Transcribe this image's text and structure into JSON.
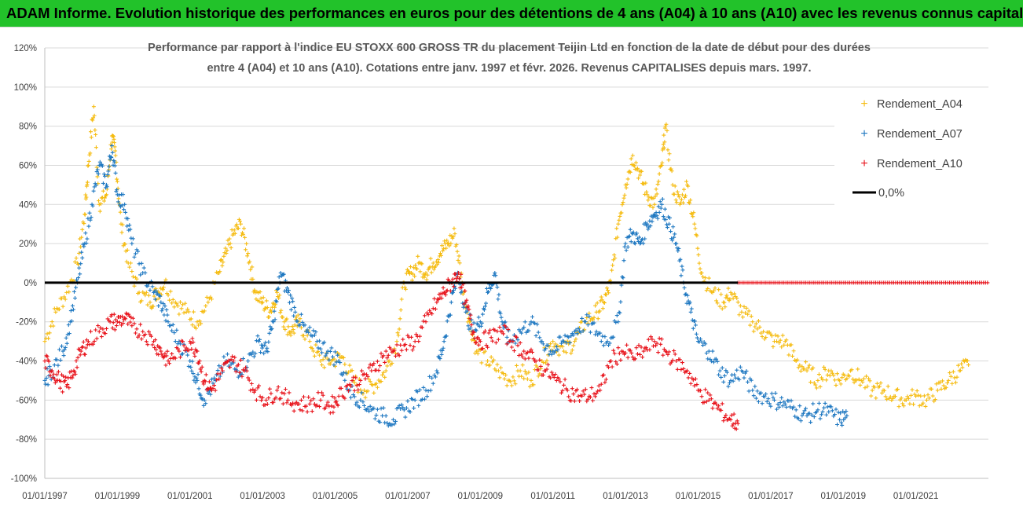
{
  "header": {
    "banner": "ADAM Informe. Evolution historique des performances en euros pour des détentions de 4 ans (A04) à 10 ans (A10) avec les revenus connus capitalisés"
  },
  "colors": {
    "banner": "#22c22a",
    "A04": "#f5bc12",
    "A07": "#1f78c1",
    "A10": "#e8141c",
    "zero_line": "#000000",
    "grid": "#d9d9d9"
  },
  "chart_data": {
    "type": "scatter",
    "title_lines": [
      "Performance par rapport à l'indice EU STOXX 600 GROSS TR  du placement Teijin Ltd en fonction de la date de début pour des durées",
      "entre 4 (A04) et 10 ans (A10). Cotations entre janv. 1997 et févr. 2026. Revenus CAPITALISES depuis mars. 1997."
    ],
    "xlabel": "",
    "ylabel": "",
    "x_range": [
      1997.0,
      2023.0
    ],
    "ylim": [
      -100,
      120
    ],
    "y_ticks": [
      120,
      100,
      80,
      60,
      40,
      20,
      0,
      -20,
      -40,
      -60,
      -80,
      -100
    ],
    "y_tick_labels": [
      "120%",
      "100%",
      "80%",
      "60%",
      "40%",
      "20%",
      "0%",
      "-20%",
      "-40%",
      "-60%",
      "-80%",
      "-100%"
    ],
    "x_ticks": [
      1997,
      1999,
      2001,
      2003,
      2005,
      2007,
      2009,
      2011,
      2013,
      2015,
      2017,
      2019,
      2021
    ],
    "x_tick_labels": [
      "01/01/1997",
      "01/01/1999",
      "01/01/2001",
      "01/01/2003",
      "01/01/2005",
      "01/01/2007",
      "01/01/2009",
      "01/01/2011",
      "01/01/2013",
      "01/01/2015",
      "01/01/2017",
      "01/01/2019",
      "01/01/2021"
    ],
    "grid": "horizontal",
    "legend_position": "top-right",
    "series": [
      {
        "name": "Rendement_A04",
        "marker": "+",
        "points": [
          [
            1997.0,
            -30
          ],
          [
            1997.3,
            -15
          ],
          [
            1997.6,
            -5
          ],
          [
            1997.9,
            10
          ],
          [
            1998.1,
            35
          ],
          [
            1998.2,
            60
          ],
          [
            1998.35,
            90
          ],
          [
            1998.5,
            40
          ],
          [
            1998.7,
            45
          ],
          [
            1998.85,
            75
          ],
          [
            1998.95,
            65
          ],
          [
            1999.1,
            30
          ],
          [
            1999.3,
            10
          ],
          [
            1999.6,
            -5
          ],
          [
            1999.9,
            -10
          ],
          [
            2000.1,
            -5
          ],
          [
            2000.3,
            0
          ],
          [
            2000.6,
            -10
          ],
          [
            2000.9,
            -15
          ],
          [
            2001.2,
            -20
          ],
          [
            2001.5,
            -10
          ],
          [
            2001.8,
            5
          ],
          [
            2002.0,
            15
          ],
          [
            2002.2,
            25
          ],
          [
            2002.4,
            30
          ],
          [
            2002.6,
            15
          ],
          [
            2002.8,
            -5
          ],
          [
            2003.0,
            -10
          ],
          [
            2003.2,
            -15
          ],
          [
            2003.4,
            -5
          ],
          [
            2003.6,
            -20
          ],
          [
            2003.8,
            -25
          ],
          [
            2004.0,
            -20
          ],
          [
            2004.3,
            -30
          ],
          [
            2004.6,
            -40
          ],
          [
            2004.9,
            -40
          ],
          [
            2005.2,
            -38
          ],
          [
            2005.5,
            -50
          ],
          [
            2005.8,
            -55
          ],
          [
            2006.1,
            -52
          ],
          [
            2006.4,
            -45
          ],
          [
            2006.7,
            -30
          ],
          [
            2006.9,
            0
          ],
          [
            2007.1,
            5
          ],
          [
            2007.3,
            10
          ],
          [
            2007.5,
            5
          ],
          [
            2007.7,
            10
          ],
          [
            2007.9,
            15
          ],
          [
            2008.1,
            20
          ],
          [
            2008.3,
            25
          ],
          [
            2008.5,
            0
          ],
          [
            2008.7,
            -20
          ],
          [
            2008.9,
            -35
          ],
          [
            2009.2,
            -40
          ],
          [
            2009.5,
            -45
          ],
          [
            2009.8,
            -50
          ],
          [
            2010.1,
            -45
          ],
          [
            2010.4,
            -50
          ],
          [
            2010.7,
            -40
          ],
          [
            2011.0,
            -30
          ],
          [
            2011.3,
            -35
          ],
          [
            2011.6,
            -30
          ],
          [
            2011.9,
            -20
          ],
          [
            2012.2,
            -15
          ],
          [
            2012.4,
            -10
          ],
          [
            2012.6,
            0
          ],
          [
            2012.8,
            30
          ],
          [
            2013.0,
            50
          ],
          [
            2013.2,
            65
          ],
          [
            2013.4,
            55
          ],
          [
            2013.6,
            45
          ],
          [
            2013.8,
            40
          ],
          [
            2014.0,
            60
          ],
          [
            2014.1,
            80
          ],
          [
            2014.3,
            50
          ],
          [
            2014.5,
            40
          ],
          [
            2014.7,
            50
          ],
          [
            2014.9,
            30
          ],
          [
            2015.1,
            5
          ],
          [
            2015.4,
            -5
          ],
          [
            2015.7,
            -10
          ],
          [
            2015.9,
            -5
          ],
          [
            2016.2,
            -15
          ],
          [
            2016.5,
            -20
          ],
          [
            2016.8,
            -25
          ],
          [
            2017.1,
            -30
          ],
          [
            2017.4,
            -30
          ],
          [
            2017.7,
            -40
          ],
          [
            2018.0,
            -45
          ],
          [
            2018.3,
            -50
          ],
          [
            2018.6,
            -45
          ],
          [
            2018.9,
            -50
          ],
          [
            2019.2,
            -45
          ],
          [
            2019.5,
            -50
          ],
          [
            2019.8,
            -55
          ],
          [
            2020.1,
            -55
          ],
          [
            2020.4,
            -58
          ],
          [
            2020.7,
            -60
          ],
          [
            2021.0,
            -58
          ],
          [
            2021.3,
            -60
          ],
          [
            2021.6,
            -55
          ],
          [
            2021.9,
            -50
          ],
          [
            2022.2,
            -45
          ],
          [
            2022.45,
            -42
          ]
        ]
      },
      {
        "name": "Rendement_A07",
        "marker": "+",
        "points": [
          [
            1997.0,
            -50
          ],
          [
            1997.2,
            -45
          ],
          [
            1997.5,
            -35
          ],
          [
            1997.7,
            -20
          ],
          [
            1997.9,
            0
          ],
          [
            1998.1,
            20
          ],
          [
            1998.3,
            40
          ],
          [
            1998.5,
            60
          ],
          [
            1998.7,
            50
          ],
          [
            1998.85,
            70
          ],
          [
            1999.0,
            45
          ],
          [
            1999.2,
            40
          ],
          [
            1999.4,
            20
          ],
          [
            1999.7,
            5
          ],
          [
            2000.0,
            -5
          ],
          [
            2000.2,
            -10
          ],
          [
            2000.4,
            -20
          ],
          [
            2000.7,
            -30
          ],
          [
            2001.0,
            -40
          ],
          [
            2001.2,
            -50
          ],
          [
            2001.4,
            -60
          ],
          [
            2001.7,
            -50
          ],
          [
            2002.0,
            -40
          ],
          [
            2002.3,
            -45
          ],
          [
            2002.6,
            -40
          ],
          [
            2002.9,
            -30
          ],
          [
            2003.1,
            -35
          ],
          [
            2003.3,
            -20
          ],
          [
            2003.5,
            5
          ],
          [
            2003.7,
            -5
          ],
          [
            2003.9,
            -15
          ],
          [
            2004.2,
            -25
          ],
          [
            2004.5,
            -30
          ],
          [
            2004.8,
            -35
          ],
          [
            2005.1,
            -40
          ],
          [
            2005.4,
            -55
          ],
          [
            2005.7,
            -60
          ],
          [
            2006.0,
            -65
          ],
          [
            2006.3,
            -68
          ],
          [
            2006.6,
            -70
          ],
          [
            2006.9,
            -65
          ],
          [
            2007.2,
            -60
          ],
          [
            2007.5,
            -55
          ],
          [
            2007.8,
            -45
          ],
          [
            2008.0,
            -30
          ],
          [
            2008.2,
            -10
          ],
          [
            2008.4,
            5
          ],
          [
            2008.6,
            -15
          ],
          [
            2008.8,
            -25
          ],
          [
            2009.0,
            -20
          ],
          [
            2009.2,
            -5
          ],
          [
            2009.4,
            5
          ],
          [
            2009.6,
            -20
          ],
          [
            2009.8,
            -30
          ],
          [
            2010.1,
            -25
          ],
          [
            2010.4,
            -20
          ],
          [
            2010.7,
            -30
          ],
          [
            2011.0,
            -35
          ],
          [
            2011.3,
            -30
          ],
          [
            2011.6,
            -25
          ],
          [
            2011.9,
            -20
          ],
          [
            2012.2,
            -25
          ],
          [
            2012.5,
            -30
          ],
          [
            2012.8,
            -20
          ],
          [
            2013.0,
            20
          ],
          [
            2013.2,
            25
          ],
          [
            2013.4,
            20
          ],
          [
            2013.6,
            30
          ],
          [
            2013.8,
            35
          ],
          [
            2014.0,
            40
          ],
          [
            2014.2,
            30
          ],
          [
            2014.4,
            20
          ],
          [
            2014.6,
            0
          ],
          [
            2014.8,
            -15
          ],
          [
            2015.0,
            -30
          ],
          [
            2015.3,
            -35
          ],
          [
            2015.6,
            -45
          ],
          [
            2015.9,
            -50
          ],
          [
            2016.2,
            -45
          ],
          [
            2016.5,
            -55
          ],
          [
            2016.8,
            -58
          ],
          [
            2017.1,
            -60
          ],
          [
            2017.4,
            -62
          ],
          [
            2017.7,
            -65
          ],
          [
            2018.0,
            -68
          ],
          [
            2018.3,
            -65
          ],
          [
            2018.6,
            -66
          ],
          [
            2018.9,
            -70
          ],
          [
            2019.1,
            -68
          ]
        ]
      },
      {
        "name": "Rendement_A10",
        "marker": "+",
        "points": [
          [
            1997.0,
            -40
          ],
          [
            1997.2,
            -45
          ],
          [
            1997.4,
            -50
          ],
          [
            1997.6,
            -53
          ],
          [
            1997.8,
            -45
          ],
          [
            1998.0,
            -35
          ],
          [
            1998.2,
            -30
          ],
          [
            1998.5,
            -25
          ],
          [
            1998.8,
            -20
          ],
          [
            1999.0,
            -20
          ],
          [
            1999.2,
            -18
          ],
          [
            1999.4,
            -22
          ],
          [
            1999.7,
            -25
          ],
          [
            2000.0,
            -30
          ],
          [
            2000.2,
            -35
          ],
          [
            2000.4,
            -40
          ],
          [
            2000.7,
            -35
          ],
          [
            2001.0,
            -30
          ],
          [
            2001.2,
            -35
          ],
          [
            2001.4,
            -50
          ],
          [
            2001.6,
            -55
          ],
          [
            2001.9,
            -45
          ],
          [
            2002.2,
            -40
          ],
          [
            2002.5,
            -45
          ],
          [
            2002.8,
            -55
          ],
          [
            2003.1,
            -60
          ],
          [
            2003.4,
            -55
          ],
          [
            2003.7,
            -60
          ],
          [
            2004.0,
            -62
          ],
          [
            2004.3,
            -62
          ],
          [
            2004.6,
            -60
          ],
          [
            2004.9,
            -63
          ],
          [
            2005.1,
            -58
          ],
          [
            2005.4,
            -52
          ],
          [
            2005.7,
            -50
          ],
          [
            2006.0,
            -45
          ],
          [
            2006.3,
            -38
          ],
          [
            2006.6,
            -35
          ],
          [
            2006.9,
            -32
          ],
          [
            2007.2,
            -30
          ],
          [
            2007.5,
            -20
          ],
          [
            2007.8,
            -10
          ],
          [
            2008.0,
            -5
          ],
          [
            2008.2,
            0
          ],
          [
            2008.4,
            5
          ],
          [
            2008.6,
            -10
          ],
          [
            2008.8,
            -25
          ],
          [
            2009.0,
            -30
          ],
          [
            2009.3,
            -28
          ],
          [
            2009.6,
            -25
          ],
          [
            2009.9,
            -30
          ],
          [
            2010.2,
            -35
          ],
          [
            2010.5,
            -40
          ],
          [
            2010.8,
            -45
          ],
          [
            2011.1,
            -50
          ],
          [
            2011.4,
            -55
          ],
          [
            2011.7,
            -58
          ],
          [
            2012.0,
            -58
          ],
          [
            2012.3,
            -55
          ],
          [
            2012.6,
            -40
          ],
          [
            2012.9,
            -35
          ],
          [
            2013.2,
            -38
          ],
          [
            2013.5,
            -35
          ],
          [
            2013.8,
            -30
          ],
          [
            2014.1,
            -35
          ],
          [
            2014.4,
            -40
          ],
          [
            2014.7,
            -45
          ],
          [
            2015.0,
            -55
          ],
          [
            2015.3,
            -60
          ],
          [
            2015.6,
            -65
          ],
          [
            2015.9,
            -70
          ],
          [
            2016.1,
            -72
          ]
        ]
      }
    ],
    "zero_line_label": "0,0%",
    "legend": [
      "Rendement_A04",
      "Rendement_A07",
      "Rendement_A10",
      "0,0%"
    ]
  }
}
